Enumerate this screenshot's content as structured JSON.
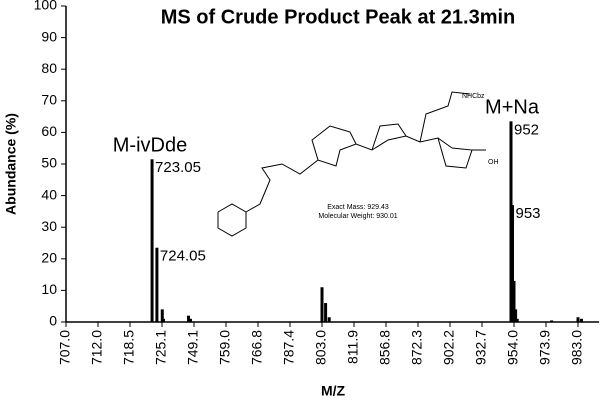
{
  "chart_data": {
    "type": "bar",
    "title": "MS of Crude Product Peak at 21.3min",
    "xlabel": "M/Z",
    "ylabel": "Abundance (%)",
    "color": "#000000",
    "x": [
      723.05,
      724.05,
      725.3,
      726.2,
      745,
      746.5,
      803.0,
      804.0,
      805.0,
      952,
      953,
      954.0,
      955.0,
      956.0,
      975.5,
      983.0,
      984.0
    ],
    "values": [
      51.5,
      23.5,
      4,
      1,
      2,
      1,
      11,
      6,
      1.5,
      63.5,
      37,
      13,
      4,
      1,
      0.5,
      1.5,
      1
    ],
    "xlim": [
      707.0,
      989
    ],
    "xticks": [
      {
        "value": 707.0,
        "label": "707.0"
      },
      {
        "value": 712.0,
        "label": "712.0"
      },
      718.5,
      725.1,
      749.1,
      {
        "value": 759.0,
        "label": "759.0"
      },
      766.8,
      787.4,
      {
        "value": 803.0,
        "label": "803.0"
      },
      811.9,
      856.8,
      872.3,
      902.2,
      932.7,
      {
        "value": 954.0,
        "label": "954.0"
      },
      973.9,
      {
        "value": 983.0,
        "label": "983.0"
      }
    ],
    "ylim": [
      0,
      100
    ],
    "yticks": [
      0,
      10,
      20,
      30,
      40,
      50,
      60,
      70,
      80,
      90,
      100
    ],
    "annotations": [
      "M-ivDde",
      "M+Na"
    ],
    "structure": {
      "exact_mass": "Exact Mass: 929.43",
      "molecular_weight": "Molecular Weight: 930.01",
      "group": "NHCbz",
      "acid": "OH"
    }
  }
}
